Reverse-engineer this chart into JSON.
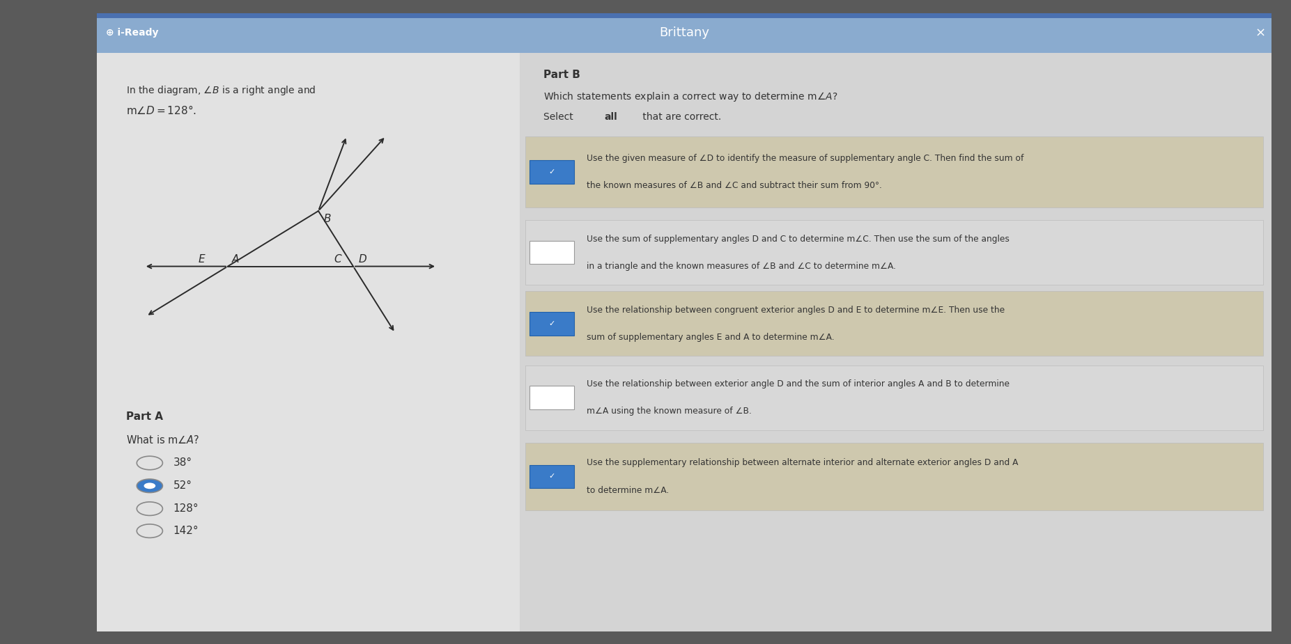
{
  "title": "Brittany",
  "bg_outer": "#5a5a5a",
  "bg_panel": "#dcdcdc",
  "bg_left": "#e0e0e0",
  "bg_right": "#d8d8d8",
  "header_color": "#8aabcf",
  "header_text_color": "#ffffff",
  "text_color": "#333333",
  "part_a_options": [
    "38°",
    "52°",
    "128°",
    "142°"
  ],
  "part_a_selected": 1,
  "checked_color": "#3a7bc8",
  "unchecked_color": "#ffffff",
  "option_checked_bg": "#cec8ae",
  "option_unchecked_bg": "#d8d8d8",
  "options_checked": [
    true,
    false,
    true,
    false,
    true
  ],
  "option_line1": [
    "Use the given measure of ∠D to identify the measure of supplementary angle C. Then find the sum of",
    "Use the sum of supplementary angles D and C to determine m∠C. Then use the sum of the angles",
    "Use the relationship between congruent exterior angles D and E to determine m∠E. Then use the",
    "Use the relationship between exterior angle D and the sum of interior angles A and B to determine",
    "Use the supplementary relationship between alternate interior and alternate exterior angles D and A"
  ],
  "option_line2": [
    "the known measures of ∠B and ∠C and subtract their sum from 90°.",
    "in a triangle and the known measures of ∠B and ∠C to determine m∠A.",
    "sum of supplementary angles E and A to determine m∠A.",
    "m∠A using the known measure of ∠B.",
    "to determine m∠A."
  ]
}
